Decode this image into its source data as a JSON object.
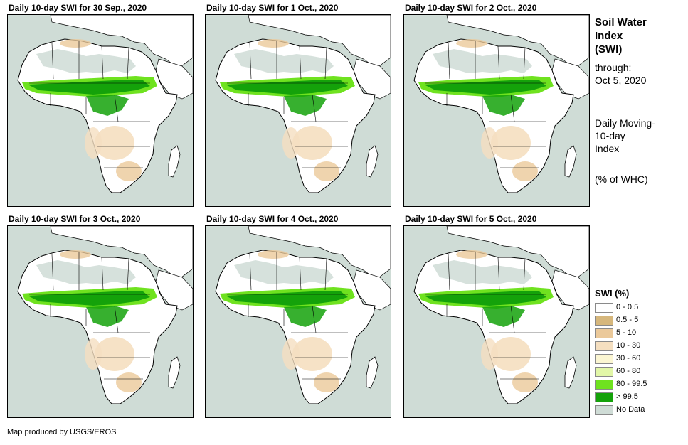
{
  "panels": [
    {
      "title": "Daily 10-day SWI for 30 Sep., 2020"
    },
    {
      "title": "Daily 10-day SWI for 1 Oct., 2020"
    },
    {
      "title": "Daily 10-day SWI for 2 Oct., 2020"
    },
    {
      "title": "Daily 10-day SWI for 3 Oct., 2020"
    },
    {
      "title": "Daily 10-day SWI for 4 Oct., 2020"
    },
    {
      "title": "Daily 10-day SWI for 5 Oct., 2020"
    }
  ],
  "sidebar": {
    "title_line1": "Soil Water",
    "title_line2": "Index",
    "title_line3": "(SWI)",
    "through_label": "through:",
    "through_date": "Oct 5, 2020",
    "desc_line1": "Daily Moving-",
    "desc_line2": "10-day",
    "desc_line3": "Index",
    "units": "(% of WHC)"
  },
  "legend": {
    "title": "SWI (%)",
    "items": [
      {
        "label": "0 - 0.5",
        "color": "#ffffff"
      },
      {
        "label": "0.5 - 5",
        "color": "#d6b77c"
      },
      {
        "label": "5 - 10",
        "color": "#ebc99a"
      },
      {
        "label": "10 - 30",
        "color": "#f5dfc0"
      },
      {
        "label": "30 - 60",
        "color": "#fbf6d2"
      },
      {
        "label": "60 - 80",
        "color": "#e2f7a8"
      },
      {
        "label": "80 - 99.5",
        "color": "#6fe21f"
      },
      {
        "label": "> 99.5",
        "color": "#14a20a"
      },
      {
        "label": "No Data",
        "color": "#cfdcd6"
      }
    ]
  },
  "credit": "Map produced by USGS/EROS"
}
